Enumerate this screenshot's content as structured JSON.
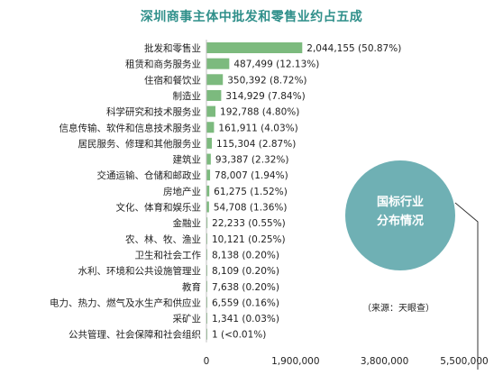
{
  "chart_data": {
    "type": "bar",
    "orientation": "horizontal",
    "title": "深圳商事主体中批发和零售业约占五成",
    "categories": [
      "批发和零售业",
      "租赁和商务服务业",
      "住宿和餐饮业",
      "制造业",
      "科学研究和技术服务业",
      "信息传输、软件和信息技术服务业",
      "居民服务、修理和其他服务业",
      "建筑业",
      "交通运输、仓储和邮政业",
      "房地产业",
      "文化、体育和娱乐业",
      "金融业",
      "农、林、牧、渔业",
      "卫生和社会工作",
      "水利、环境和公共设施管理业",
      "教育",
      "电力、热力、燃气及水生产和供应业",
      "采矿业",
      "公共管理、社会保障和社会组织"
    ],
    "values": [
      2044155,
      487499,
      350392,
      314929,
      192788,
      161911,
      115304,
      93387,
      78007,
      61275,
      54708,
      22233,
      10121,
      8138,
      8109,
      7638,
      6559,
      1341,
      1
    ],
    "value_labels": [
      "2,044,155 (50.87%)",
      "487,499 (12.13%)",
      "350,392 (8.72%)",
      "314,929 (7.84%)",
      "192,788 (4.80%)",
      "161,911 (4.03%)",
      "115,304 (2.87%)",
      "93,387 (2.32%)",
      "78,007 (1.94%)",
      "61,275 (1.52%)",
      "54,708 (1.36%)",
      "22,233 (0.55%)",
      "10,121 (0.25%)",
      "8,138 (0.20%)",
      "8,109 (0.20%)",
      "7,638 (0.20%)",
      "6,559 (0.16%)",
      "1,341 (0.03%)",
      "1 (<0.01%)"
    ],
    "xlim": [
      0,
      5500000
    ],
    "xticks": [
      0,
      1900000,
      3800000,
      5500000
    ],
    "xtick_labels": [
      "0",
      "1,900,000",
      "3,800,000",
      "5,500,000"
    ],
    "bar_color": "#7cba7e",
    "grid": false
  },
  "annotation": {
    "callout_line1": "国标行业",
    "callout_line2": "分布情况",
    "callout_color": "#6fb0b4",
    "source": "（来源：天眼查）"
  }
}
